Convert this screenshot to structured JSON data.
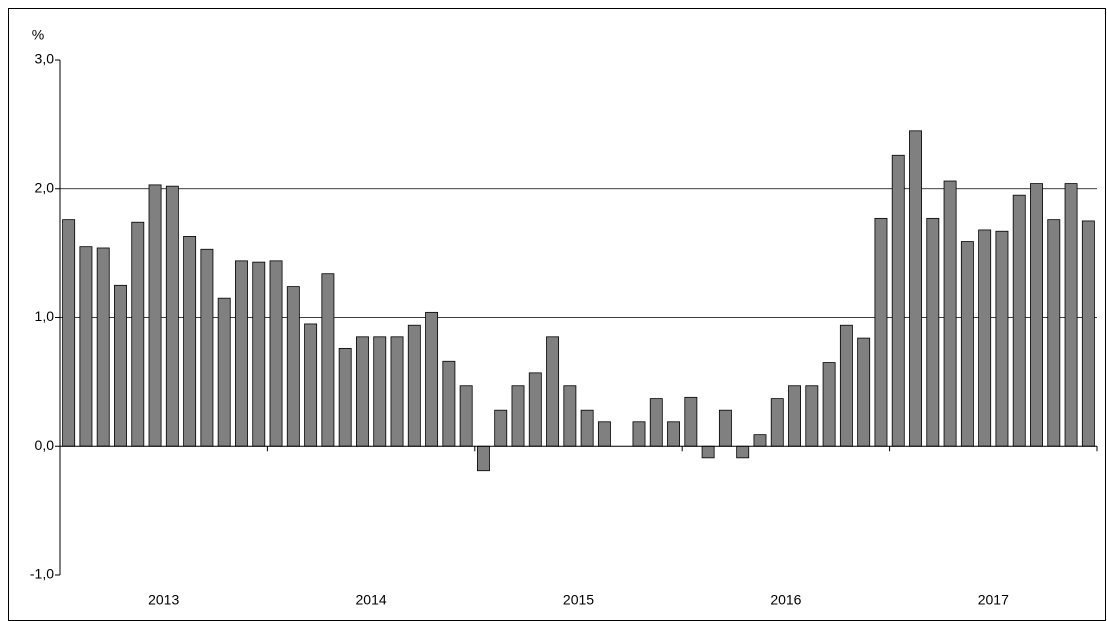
{
  "chart_data": {
    "type": "bar",
    "y_unit": "%",
    "year_labels": [
      "2013",
      "2014",
      "2015",
      "2016",
      "2017"
    ],
    "values": [
      1.76,
      1.55,
      1.54,
      1.25,
      1.74,
      2.03,
      2.02,
      1.63,
      1.53,
      1.15,
      1.44,
      1.43,
      1.44,
      1.24,
      0.95,
      1.34,
      0.76,
      0.85,
      0.85,
      0.85,
      0.94,
      1.04,
      0.66,
      0.47,
      -0.19,
      0.28,
      0.47,
      0.57,
      0.85,
      0.47,
      0.28,
      0.19,
      0,
      0.19,
      0.37,
      0.19,
      0.38,
      -0.09,
      0.28,
      -0.09,
      0.09,
      0.37,
      0.47,
      0.47,
      0.65,
      0.94,
      0.84,
      1.77,
      2.26,
      2.45,
      1.77,
      2.06,
      1.59,
      1.68,
      1.67,
      1.95,
      2.04,
      1.76,
      2.04,
      1.75
    ],
    "color": "#808080",
    "ylim": [
      -1,
      3
    ],
    "yticks": [
      {
        "value": -1,
        "label": "-1,0"
      },
      {
        "value": 0,
        "label": "0,0"
      },
      {
        "value": 1,
        "label": "1,0"
      },
      {
        "value": 2,
        "label": "2,0"
      },
      {
        "value": 3,
        "label": "3,0"
      }
    ],
    "grid": true
  }
}
